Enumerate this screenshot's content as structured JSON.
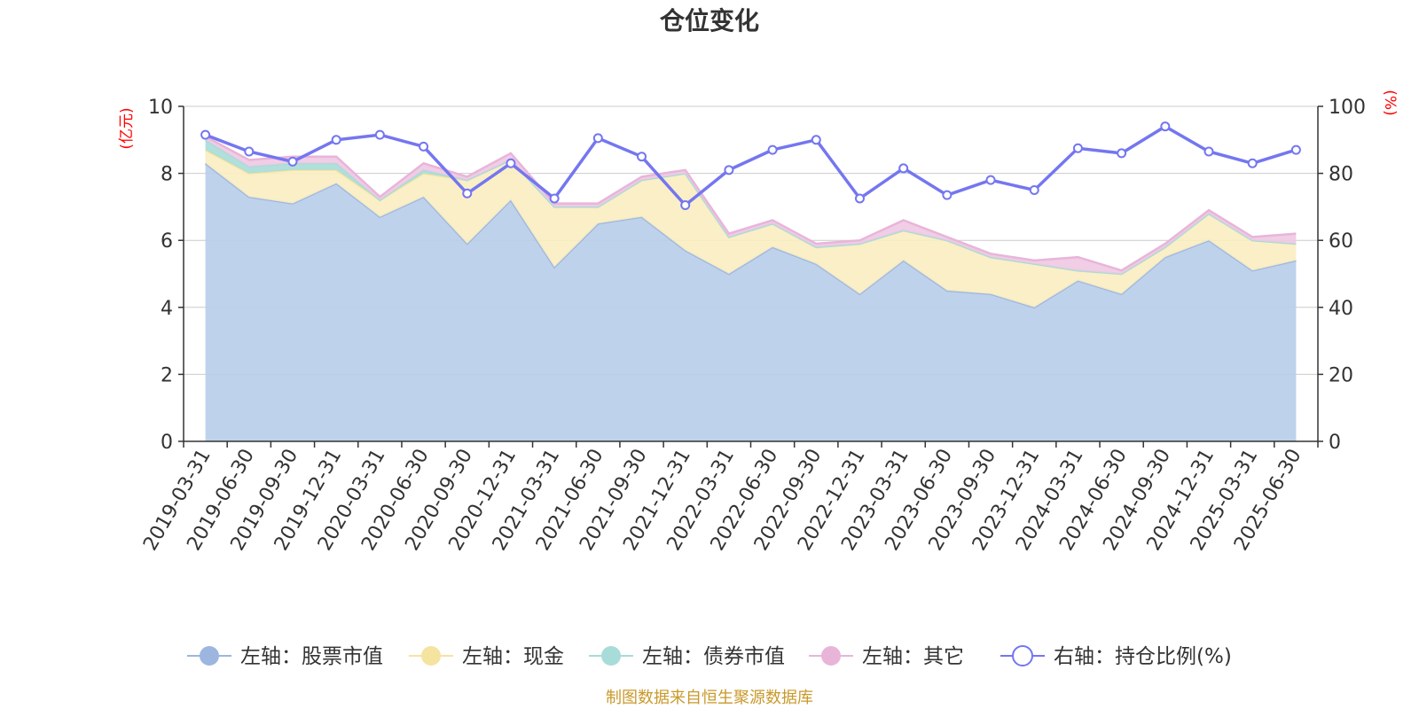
{
  "title": "仓位变化",
  "source": "制图数据来自恒生聚源数据库",
  "chart_data": {
    "type": "area",
    "left_unit": "(亿元)",
    "right_unit": "(%)",
    "left_ylim": [
      0,
      10
    ],
    "right_ylim": [
      0,
      100
    ],
    "left_ticks": [
      0,
      2,
      4,
      6,
      8,
      10
    ],
    "right_ticks": [
      0,
      20,
      40,
      60,
      80,
      100
    ],
    "grid": true,
    "legend_position": "bottom",
    "categories": [
      "2019-03-31",
      "2019-06-30",
      "2019-09-30",
      "2019-12-31",
      "2020-03-31",
      "2020-06-30",
      "2020-09-30",
      "2020-12-31",
      "2021-03-31",
      "2021-06-30",
      "2021-09-30",
      "2021-12-31",
      "2022-03-31",
      "2022-06-30",
      "2022-09-30",
      "2022-12-31",
      "2023-03-31",
      "2023-06-30",
      "2023-09-30",
      "2023-12-31",
      "2024-03-31",
      "2024-06-30",
      "2024-09-30",
      "2024-12-31",
      "2025-03-31",
      "2025-06-30"
    ],
    "series": [
      {
        "name": "左轴：股票市值",
        "axis": "left",
        "kind": "area",
        "color": "#9db6e0",
        "fill": "#b8cdea",
        "values": [
          8.3,
          7.3,
          7.1,
          7.7,
          6.7,
          7.3,
          5.9,
          7.2,
          5.2,
          6.5,
          6.7,
          5.7,
          5.0,
          5.8,
          5.3,
          4.4,
          5.4,
          4.5,
          4.4,
          4.0,
          4.8,
          4.4,
          5.5,
          6.0,
          5.1,
          5.4
        ]
      },
      {
        "name": "左轴：现金",
        "axis": "left",
        "kind": "area",
        "color": "#f5e3a0",
        "fill": "#faedc0",
        "values": [
          0.4,
          0.7,
          1.0,
          0.4,
          0.5,
          0.7,
          1.9,
          1.2,
          1.8,
          0.5,
          1.1,
          2.3,
          1.1,
          0.7,
          0.5,
          1.5,
          0.9,
          1.5,
          1.1,
          1.3,
          0.3,
          0.6,
          0.3,
          0.8,
          0.9,
          0.5
        ]
      },
      {
        "name": "左轴：债券市值",
        "axis": "left",
        "kind": "area",
        "color": "#a8dcd8",
        "fill": "#a8dcd8",
        "values": [
          0.3,
          0.2,
          0.2,
          0.2,
          0,
          0.1,
          0,
          0,
          0,
          0,
          0,
          0,
          0,
          0,
          0,
          0,
          0,
          0,
          0,
          0,
          0,
          0,
          0,
          0,
          0,
          0
        ]
      },
      {
        "name": "左轴：其它",
        "axis": "left",
        "kind": "area",
        "color": "#e8b5d9",
        "fill": "#f0c8e3",
        "values": [
          0.1,
          0.2,
          0.2,
          0.2,
          0.1,
          0.2,
          0.1,
          0.2,
          0.1,
          0.1,
          0.1,
          0.1,
          0.1,
          0.1,
          0.1,
          0.1,
          0.3,
          0.1,
          0.1,
          0.1,
          0.4,
          0.1,
          0.1,
          0.1,
          0.1,
          0.3
        ]
      },
      {
        "name": "右轴：持仓比例(%)",
        "axis": "right",
        "kind": "line",
        "color": "#7476f0",
        "values": [
          91.5,
          86.5,
          83.5,
          90.0,
          91.5,
          88.0,
          74.0,
          83.0,
          72.5,
          90.5,
          85.0,
          70.5,
          81.0,
          87.0,
          90.0,
          72.5,
          81.5,
          73.5,
          78.0,
          75.0,
          87.5,
          86.0,
          94.0,
          86.5,
          83.0,
          87.0
        ]
      }
    ]
  }
}
